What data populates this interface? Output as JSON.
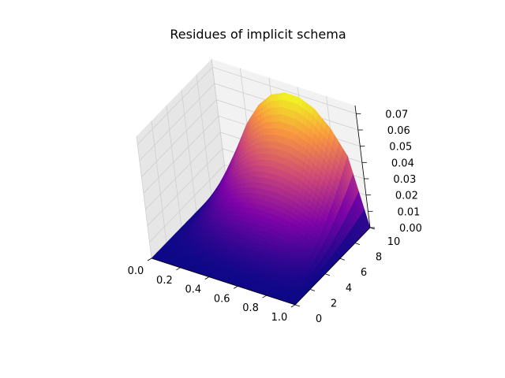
{
  "chart_data": {
    "type": "surface3d",
    "title": "Residues of implicit schema",
    "xlabel": "",
    "ylabel": "",
    "zlabel": "",
    "colormap": "plasma",
    "x_range": [
      0.0,
      1.0
    ],
    "y_range": [
      0,
      10
    ],
    "z_range": [
      0.0,
      0.075
    ],
    "x_ticks": [
      "0.0",
      "0.2",
      "0.4",
      "0.6",
      "0.8",
      "1.0"
    ],
    "y_ticks": [
      "0",
      "2",
      "4",
      "6",
      "8",
      "10"
    ],
    "z_ticks": [
      "0.00",
      "0.01",
      "0.02",
      "0.03",
      "0.04",
      "0.05",
      "0.06",
      "0.07"
    ],
    "x_tick_values": [
      0.0,
      0.2,
      0.4,
      0.6,
      0.8,
      1.0
    ],
    "y_tick_values": [
      0,
      2,
      4,
      6,
      8,
      10
    ],
    "z_tick_values": [
      0.0,
      0.01,
      0.02,
      0.03,
      0.04,
      0.05,
      0.06,
      0.07
    ],
    "surface": {
      "x": [
        0.0,
        0.1,
        0.2,
        0.3,
        0.4,
        0.5,
        0.6,
        0.7,
        0.8,
        0.9,
        1.0
      ],
      "y": [
        0,
        1,
        2,
        3,
        4,
        5,
        6,
        7,
        8,
        9,
        10
      ],
      "z": [
        [
          0.0,
          0.0,
          0.0,
          0.0,
          0.0,
          0.0,
          0.0,
          0.0,
          0.0,
          0.0,
          0.0
        ],
        [
          0.0,
          0.0002,
          0.0004,
          0.0005,
          0.0006,
          0.0007,
          0.0007,
          0.0007,
          0.0006,
          0.0004,
          0.0
        ],
        [
          0.0,
          0.0009,
          0.0016,
          0.0022,
          0.0026,
          0.0028,
          0.0028,
          0.0026,
          0.0022,
          0.0016,
          0.0
        ],
        [
          0.0,
          0.002,
          0.0037,
          0.005,
          0.0058,
          0.0062,
          0.0062,
          0.0058,
          0.005,
          0.0037,
          0.0
        ],
        [
          0.0,
          0.0036,
          0.0066,
          0.0088,
          0.0103,
          0.011,
          0.011,
          0.0103,
          0.0088,
          0.0066,
          0.0
        ],
        [
          0.0,
          0.0056,
          0.0103,
          0.0138,
          0.0161,
          0.0172,
          0.0172,
          0.0161,
          0.0138,
          0.0103,
          0.0
        ],
        [
          0.0,
          0.008,
          0.0148,
          0.0198,
          0.0232,
          0.0247,
          0.0247,
          0.0232,
          0.0198,
          0.0148,
          0.0
        ],
        [
          0.0,
          0.0109,
          0.0201,
          0.027,
          0.0316,
          0.0336,
          0.0336,
          0.0316,
          0.027,
          0.0201,
          0.0
        ],
        [
          0.0,
          0.0142,
          0.0263,
          0.0353,
          0.0413,
          0.0439,
          0.0439,
          0.0413,
          0.0353,
          0.0263,
          0.0
        ],
        [
          0.0,
          0.018,
          0.0333,
          0.0447,
          0.0522,
          0.0556,
          0.0556,
          0.0522,
          0.0447,
          0.0333,
          0.0
        ],
        [
          0.0,
          0.0222,
          0.0411,
          0.0552,
          0.0645,
          0.0686,
          0.0686,
          0.0645,
          0.0552,
          0.0411,
          0.0
        ]
      ]
    }
  }
}
